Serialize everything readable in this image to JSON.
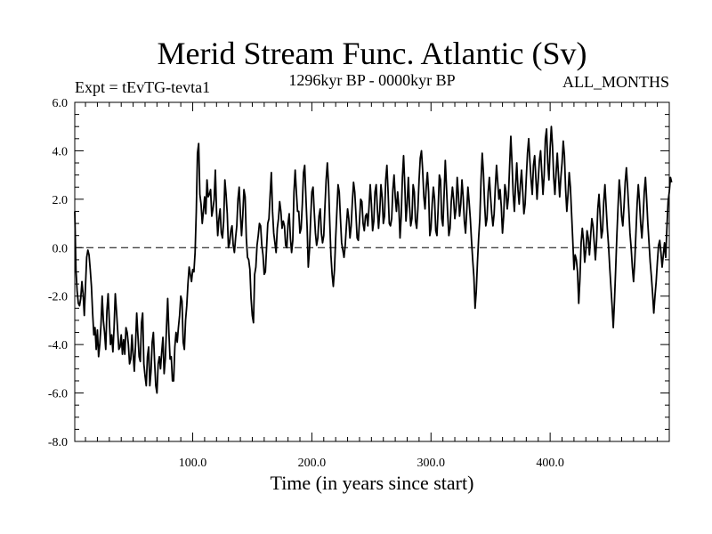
{
  "chart_data": {
    "type": "line",
    "title": "Merid Stream Func. Atlantic (Sv)",
    "subtitle_left": "Expt = tEvTG-tevta1",
    "subtitle_center": "1296kyr BP - 0000kyr BP",
    "subtitle_right": "ALL_MONTHS",
    "xlabel": "Time (in years since start)",
    "ylabel": "",
    "xlim": [
      1,
      500
    ],
    "ylim": [
      -8.0,
      6.0
    ],
    "x_ticks": [
      100,
      200,
      300,
      400
    ],
    "x_tick_labels": [
      "100.0",
      "200.0",
      "300.0",
      "400.0"
    ],
    "y_ticks": [
      -8,
      -6,
      -4,
      -2,
      0,
      2,
      4,
      6
    ],
    "y_tick_labels": [
      "-8.0",
      "-6.0",
      "-4.0",
      "-2.0",
      "0.0",
      "2.0",
      "4.0",
      "6.0"
    ],
    "reference_line": {
      "y": 0.0,
      "style": "dashed"
    },
    "x_start": 1,
    "x_step": 1,
    "values": [
      1.5,
      -0.9,
      -1.8,
      -2.3,
      -2.4,
      -2.1,
      -1.4,
      -1.9,
      -2.8,
      -1.6,
      -0.4,
      -0.1,
      -0.3,
      -0.9,
      -1.6,
      -2.7,
      -3.6,
      -3.3,
      -4.2,
      -3.4,
      -4.5,
      -4.0,
      -3.2,
      -2.0,
      -3.0,
      -3.5,
      -4.2,
      -2.6,
      -1.9,
      -3.0,
      -4.0,
      -3.6,
      -4.3,
      -3.3,
      -1.9,
      -2.6,
      -3.4,
      -4.2,
      -4.1,
      -3.6,
      -4.4,
      -3.8,
      -4.4,
      -3.3,
      -3.5,
      -4.0,
      -4.8,
      -4.6,
      -3.6,
      -4.4,
      -5.1,
      -4.0,
      -2.7,
      -3.6,
      -4.5,
      -4.7,
      -3.1,
      -2.7,
      -4.8,
      -5.3,
      -5.7,
      -4.5,
      -4.1,
      -5.7,
      -5.1,
      -3.9,
      -3.5,
      -4.7,
      -5.7,
      -6.0,
      -4.8,
      -4.5,
      -5.0,
      -4.3,
      -3.7,
      -5.2,
      -4.6,
      -3.3,
      -2.1,
      -3.5,
      -4.6,
      -4.5,
      -5.5,
      -5.5,
      -4.1,
      -3.5,
      -3.9,
      -3.3,
      -2.8,
      -2.0,
      -2.2,
      -3.9,
      -4.2,
      -3.0,
      -2.4,
      -1.5,
      -0.8,
      -1.1,
      -1.4,
      -0.9,
      -1.0,
      -0.2,
      1.5,
      3.9,
      4.3,
      2.2,
      1.8,
      1.0,
      1.5,
      2.1,
      1.4,
      2.8,
      2.1,
      2.2,
      2.4,
      1.3,
      1.6,
      2.0,
      3.2,
      1.5,
      0.5,
      1.2,
      1.6,
      0.6,
      0.4,
      1.1,
      2.8,
      2.2,
      1.4,
      0.0,
      0.2,
      0.7,
      0.9,
      0.1,
      -0.2,
      0.4,
      0.9,
      2.0,
      2.5,
      1.4,
      0.5,
      1.3,
      2.4,
      2.1,
      0.4,
      -0.4,
      -0.5,
      -0.9,
      -2.1,
      -2.8,
      -3.1,
      -1.1,
      -0.8,
      0.1,
      0.5,
      1.0,
      0.9,
      0.1,
      -0.3,
      -1.1,
      -1.0,
      0.0,
      1.0,
      1.2,
      2.2,
      3.1,
      1.5,
      0.6,
      0.2,
      -0.2,
      0.8,
      1.2,
      1.9,
      1.5,
      0.8,
      1.1,
      0.9,
      0.1,
      0.0,
      1.0,
      1.4,
      0.4,
      -0.2,
      0.3,
      2.3,
      3.2,
      2.3,
      1.5,
      1.5,
      0.6,
      0.8,
      1.8,
      3.1,
      3.4,
      2.1,
      0.9,
      -0.8,
      -0.1,
      1.2,
      2.3,
      2.5,
      1.5,
      0.6,
      0.1,
      0.4,
      1.3,
      1.6,
      0.6,
      0.2,
      0.5,
      1.7,
      2.8,
      3.5,
      2.6,
      1.1,
      -0.3,
      -1.1,
      -1.6,
      -0.9,
      0.4,
      1.5,
      2.6,
      2.3,
      1.2,
      0.2,
      -0.1,
      -0.4,
      0.1,
      0.9,
      1.6,
      1.2,
      0.4,
      0.9,
      1.9,
      2.7,
      2.3,
      1.4,
      0.4,
      0.3,
      1.1,
      2.0,
      1.9,
      1.0,
      0.7,
      1.3,
      1.4,
      0.9,
      1.7,
      2.6,
      1.8,
      0.7,
      1.1,
      2.3,
      2.6,
      1.6,
      0.8,
      1.5,
      2.6,
      2.1,
      1.0,
      1.3,
      2.8,
      3.4,
      2.3,
      1.0,
      0.9,
      1.2,
      2.4,
      3.0,
      2.1,
      1.5,
      2.3,
      1.7,
      0.4,
      1.3,
      2.9,
      3.8,
      2.6,
      1.1,
      1.8,
      2.9,
      1.7,
      0.9,
      1.2,
      2.6,
      2.3,
      1.1,
      0.8,
      1.6,
      2.8,
      3.7,
      4.0,
      3.2,
      2.1,
      1.6,
      2.5,
      3.1,
      2.3,
      0.5,
      0.8,
      1.8,
      2.5,
      2.0,
      0.7,
      0.5,
      1.6,
      3.0,
      2.8,
      1.2,
      0.9,
      2.2,
      3.6,
      2.5,
      1.4,
      0.5,
      0.8,
      1.9,
      2.5,
      2.0,
      1.2,
      1.6,
      2.9,
      2.2,
      1.3,
      1.8,
      2.8,
      2.1,
      1.1,
      0.6,
      1.5,
      2.5,
      1.9,
      1.2,
      0.3,
      -0.5,
      -1.2,
      -2.5,
      -1.8,
      -0.6,
      0.4,
      1.2,
      2.8,
      3.9,
      3.1,
      1.8,
      0.9,
      1.2,
      2.3,
      2.9,
      2.1,
      1.4,
      0.9,
      1.4,
      2.5,
      3.4,
      2.7,
      2.0,
      2.4,
      1.7,
      0.6,
      1.3,
      2.6,
      2.3,
      1.6,
      2.1,
      3.4,
      4.6,
      3.5,
      2.2,
      1.5,
      2.6,
      3.5,
      2.4,
      1.8,
      2.6,
      3.2,
      2.3,
      1.4,
      1.8,
      2.9,
      3.9,
      4.5,
      3.6,
      2.8,
      2.2,
      3.4,
      3.8,
      2.9,
      2.0,
      2.8,
      3.6,
      4.0,
      3.1,
      2.2,
      3.0,
      4.5,
      4.9,
      3.5,
      2.8,
      4.1,
      5.0,
      4.2,
      2.9,
      2.2,
      3.1,
      3.9,
      3.0,
      2.1,
      2.9,
      3.5,
      4.4,
      3.8,
      2.4,
      1.5,
      2.2,
      3.1,
      2.5,
      1.4,
      0.3,
      -0.9,
      -0.3,
      -0.5,
      -1.0,
      -2.3,
      -1.3,
      0.2,
      0.8,
      0.3,
      -0.6,
      -0.1,
      0.7,
      0.4,
      -0.3,
      0.5,
      1.2,
      0.9,
      0.2,
      -0.5,
      0.3,
      1.6,
      2.2,
      1.3,
      0.4,
      0.7,
      1.9,
      2.6,
      1.7,
      0.8,
      0.1,
      -0.8,
      -1.6,
      -2.4,
      -3.3,
      -2.2,
      -0.9,
      0.5,
      1.7,
      2.8,
      2.2,
      1.3,
      0.9,
      1.7,
      2.7,
      3.3,
      2.5,
      1.6,
      0.6,
      0.0,
      -0.8,
      -1.4,
      -0.6,
      0.6,
      1.8,
      2.6,
      1.9,
      1.0,
      0.4,
      1.2,
      2.3,
      2.9,
      2.0,
      1.0,
      0.2,
      -0.6,
      -1.2,
      -1.9,
      -2.7,
      -2.0,
      -1.4,
      -0.6,
      0.1,
      0.3,
      -0.2,
      -0.8,
      -0.3,
      0.2,
      -0.4,
      0.8,
      1.9,
      2.3,
      2.9,
      2.7
    ]
  }
}
